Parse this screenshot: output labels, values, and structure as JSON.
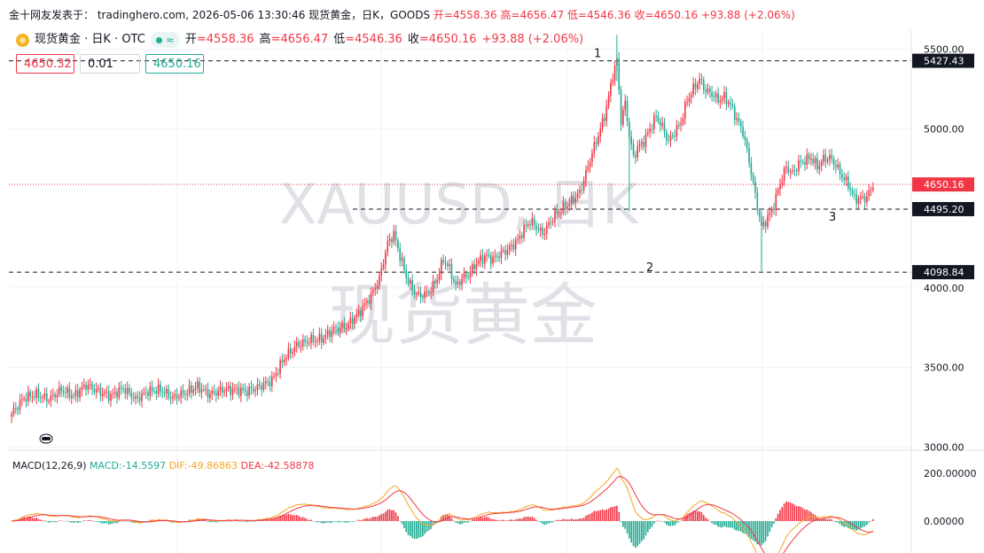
{
  "header": {
    "source_prefix": "金十网友发表于：",
    "site": "tradinghero.com",
    "datetime": "2026-05-06 13:30:46",
    "symbol_info": "现货黄金，日K，GOODS",
    "open_text": "开=4558.36",
    "high_text": "高=4656.47",
    "low_text": "低=4546.36",
    "close_text": "收=4650.16",
    "change_text": "+93.88 (+2.06%)"
  },
  "legend": {
    "title": "现货黄金 · 日K · OTC",
    "open_label": "开",
    "open": "=4558.36",
    "high_label": "高",
    "high": "=4656.47",
    "low_label": "低",
    "low": "=4546.36",
    "close_label": "收",
    "close": "=4650.16",
    "change": "+93.88 (+2.06%)"
  },
  "order": {
    "sell_price": "4650.32",
    "quantity": "0.01",
    "buy_price": "4650.16"
  },
  "macd": {
    "label": "MACD(12,26,9)",
    "macd_text": "MACD:-14.5597",
    "dif_text": "DIF:-49.86863",
    "dea_text": "DEA:-42.58878"
  },
  "colors": {
    "up": "#f23645",
    "down": "#22ab94",
    "dif": "#f5a623",
    "dea": "#f23645",
    "accent": "#f5b324"
  },
  "chart_data": {
    "type": "candlestick",
    "watermark_symbol": "XAUUSD, 日K",
    "watermark_name": "现货黄金",
    "y_ticks": [
      3000,
      3500,
      4000,
      5000,
      5500
    ],
    "y_tick_labels": [
      "3000.00",
      "3500.00",
      "4000.00",
      "5000.00",
      "5500.00"
    ],
    "ylim": [
      2980,
      5620
    ],
    "current_price": 4650.16,
    "current_price_label": "4650.16",
    "levels": [
      {
        "value": 5427.43,
        "label": "5427.43",
        "annotation": "1"
      },
      {
        "value": 4098.84,
        "label": "4098.84",
        "annotation": "2"
      },
      {
        "value": 4495.2,
        "label": "4495.20",
        "annotation": "3"
      }
    ],
    "close_path": [
      [
        0,
        3210
      ],
      [
        6,
        3310
      ],
      [
        12,
        3330
      ],
      [
        18,
        3300
      ],
      [
        24,
        3360
      ],
      [
        30,
        3320
      ],
      [
        36,
        3390
      ],
      [
        42,
        3350
      ],
      [
        48,
        3320
      ],
      [
        54,
        3370
      ],
      [
        60,
        3300
      ],
      [
        66,
        3350
      ],
      [
        72,
        3360
      ],
      [
        78,
        3310
      ],
      [
        84,
        3340
      ],
      [
        90,
        3380
      ],
      [
        96,
        3330
      ],
      [
        102,
        3360
      ],
      [
        108,
        3360
      ],
      [
        114,
        3350
      ],
      [
        120,
        3380
      ],
      [
        126,
        3420
      ],
      [
        132,
        3560
      ],
      [
        138,
        3640
      ],
      [
        144,
        3670
      ],
      [
        150,
        3680
      ],
      [
        156,
        3740
      ],
      [
        162,
        3760
      ],
      [
        168,
        3840
      ],
      [
        174,
        3950
      ],
      [
        178,
        4060
      ],
      [
        182,
        4280
      ],
      [
        185,
        4340
      ],
      [
        188,
        4200
      ],
      [
        191,
        4070
      ],
      [
        194,
        3990
      ],
      [
        197,
        3950
      ],
      [
        200,
        3960
      ],
      [
        203,
        3990
      ],
      [
        206,
        4060
      ],
      [
        209,
        4180
      ],
      [
        212,
        4120
      ],
      [
        215,
        4010
      ],
      [
        218,
        4060
      ],
      [
        221,
        4080
      ],
      [
        224,
        4140
      ],
      [
        227,
        4180
      ],
      [
        230,
        4200
      ],
      [
        233,
        4180
      ],
      [
        236,
        4210
      ],
      [
        239,
        4230
      ],
      [
        242,
        4260
      ],
      [
        245,
        4300
      ],
      [
        248,
        4370
      ],
      [
        251,
        4420
      ],
      [
        254,
        4380
      ],
      [
        257,
        4340
      ],
      [
        260,
        4400
      ],
      [
        263,
        4460
      ],
      [
        266,
        4490
      ],
      [
        269,
        4520
      ],
      [
        272,
        4560
      ],
      [
        275,
        4600
      ],
      [
        278,
        4720
      ],
      [
        281,
        4850
      ],
      [
        284,
        4960
      ],
      [
        287,
        5080
      ],
      [
        289,
        5200
      ],
      [
        291,
        5340
      ],
      [
        293,
        5430
      ],
      [
        295,
        5050
      ],
      [
        297,
        5160
      ],
      [
        299,
        4960
      ],
      [
        301,
        4820
      ],
      [
        303,
        4880
      ],
      [
        306,
        4920
      ],
      [
        309,
        5000
      ],
      [
        312,
        5080
      ],
      [
        315,
        5010
      ],
      [
        318,
        4920
      ],
      [
        321,
        4980
      ],
      [
        324,
        5040
      ],
      [
        327,
        5180
      ],
      [
        330,
        5250
      ],
      [
        333,
        5310
      ],
      [
        336,
        5240
      ],
      [
        339,
        5220
      ],
      [
        342,
        5180
      ],
      [
        345,
        5200
      ],
      [
        348,
        5150
      ],
      [
        351,
        5060
      ],
      [
        354,
        4980
      ],
      [
        357,
        4800
      ],
      [
        360,
        4580
      ],
      [
        363,
        4380
      ],
      [
        366,
        4440
      ],
      [
        369,
        4520
      ],
      [
        372,
        4660
      ],
      [
        375,
        4760
      ],
      [
        378,
        4720
      ],
      [
        381,
        4780
      ],
      [
        384,
        4800
      ],
      [
        387,
        4820
      ],
      [
        390,
        4760
      ],
      [
        393,
        4810
      ],
      [
        396,
        4820
      ],
      [
        399,
        4770
      ],
      [
        402,
        4700
      ],
      [
        405,
        4650
      ],
      [
        408,
        4560
      ],
      [
        411,
        4560
      ],
      [
        414,
        4570
      ],
      [
        417,
        4650
      ]
    ],
    "macd_ticks": [
      0,
      200
    ],
    "macd_tick_labels": [
      "0.00000",
      "200.00000"
    ]
  }
}
